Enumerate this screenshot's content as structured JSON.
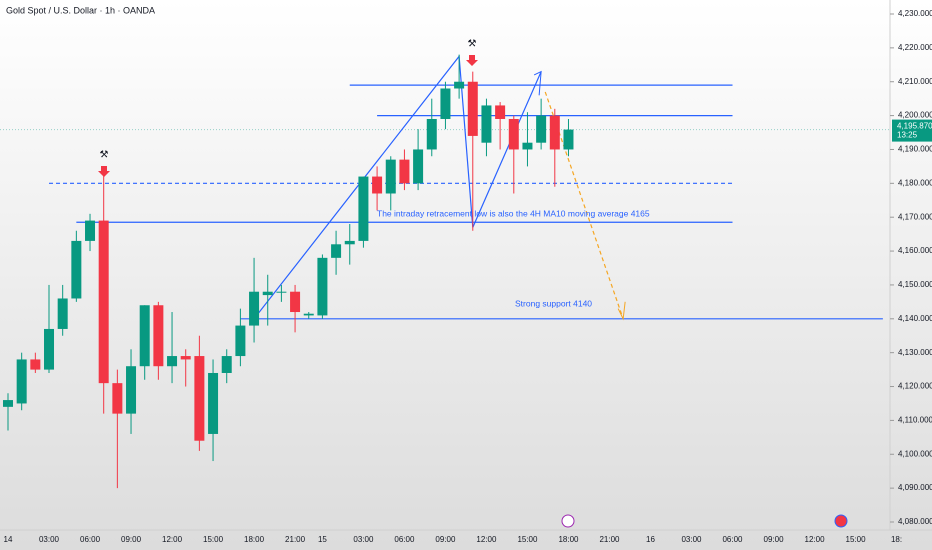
{
  "chart_data": {
    "type": "candlestick",
    "title": "Gold Spot / U.S. Dollar · 1h · OANDA",
    "categories": [
      "14",
      null,
      null,
      "03:00",
      null,
      null,
      "06:00",
      null,
      null,
      "09:00",
      null,
      null,
      "12:00",
      null,
      null,
      "15:00",
      null,
      null,
      "18:00",
      null,
      null,
      "21:00",
      null,
      "15",
      null,
      null,
      "03:00",
      null,
      null,
      "06:00",
      null,
      null,
      "09:00",
      null,
      null,
      "12:00",
      null,
      null,
      "15:00",
      null,
      null,
      "18:00",
      null,
      null,
      "21:00",
      null,
      null,
      "16",
      null,
      null,
      "03:00",
      null,
      null,
      "06:00",
      null,
      null,
      "09:00",
      null,
      null,
      "12:00",
      null,
      null,
      "15:00",
      null,
      null,
      "18:"
    ],
    "open": [
      4114,
      4115,
      4128,
      4125,
      4137,
      4146,
      4163,
      4169,
      4121,
      4112,
      4126,
      4144,
      4126,
      4129,
      4129,
      4106,
      4124,
      4129,
      4138,
      4147,
      4148,
      4148,
      4141,
      4141,
      4158,
      4162,
      4163,
      4182,
      4177,
      4187,
      4180,
      4190,
      4199,
      4208,
      4210,
      4192,
      4203,
      4199,
      4190,
      4192,
      4200,
      4190,
      null,
      null,
      null,
      null,
      null,
      null,
      null,
      null,
      null,
      null,
      null,
      null,
      null,
      null,
      null,
      null,
      null,
      null,
      null,
      null,
      null,
      null,
      null,
      null
    ],
    "high": [
      4118,
      4130,
      4130,
      4150,
      4150,
      4166,
      4171,
      4185,
      4125,
      4131,
      4144,
      4145,
      4142,
      4131,
      4135,
      4128,
      4131,
      4143,
      4158,
      4153,
      4150,
      4150,
      4142,
      4159,
      4166,
      4168,
      4182,
      4185,
      4188,
      4190,
      4196,
      4205,
      4210,
      4218,
      4213,
      4205,
      4204,
      4200,
      4201,
      4205,
      4202,
      4199,
      null,
      null,
      null,
      null,
      null,
      null,
      null,
      null,
      null,
      null,
      null,
      null,
      null,
      null,
      null,
      null,
      null,
      null,
      null,
      null,
      null,
      null,
      null,
      null
    ],
    "low": [
      4107,
      4113,
      4124,
      4124,
      4135,
      4145,
      4160,
      4112,
      4090,
      4106,
      4122,
      4122,
      4121,
      4120,
      4101,
      4098,
      4121,
      4126,
      4133,
      4138,
      4145,
      4136,
      4140,
      4140,
      4153,
      4156,
      4161,
      4172,
      4172,
      4178,
      4178,
      4188,
      4196,
      4205,
      4166,
      4188,
      4190,
      4177,
      4185,
      4190,
      4179,
      4188,
      null,
      null,
      null,
      null,
      null,
      null,
      null,
      null,
      null,
      null,
      null,
      null,
      null,
      null,
      null,
      null,
      null,
      null,
      null,
      null,
      null,
      null,
      null,
      null
    ],
    "close": [
      4116,
      4128,
      4125,
      4137,
      4146,
      4163,
      4169,
      4121,
      4112,
      4126,
      4144,
      4126,
      4129,
      4128,
      4104,
      4124,
      4129,
      4138,
      4148,
      4148,
      4148,
      4142,
      4141.5,
      4158,
      4162,
      4163,
      4182,
      4177,
      4187,
      4180,
      4190,
      4199,
      4208,
      4210,
      4194,
      4203,
      4199,
      4190,
      4192,
      4200,
      4190,
      4195.87,
      null,
      null,
      null,
      null,
      null,
      null,
      null,
      null,
      null,
      null,
      null,
      null,
      null,
      null,
      null,
      null,
      null,
      null,
      null,
      null,
      null,
      null,
      null,
      null
    ],
    "up_color": "#089981",
    "down_color": "#f23645",
    "ylim": [
      4080,
      4230
    ],
    "yticks": [
      {
        "value": 4080,
        "label": "4,080.000"
      },
      {
        "value": 4090,
        "label": "4,090.000"
      },
      {
        "value": 4100,
        "label": "4,100.000"
      },
      {
        "value": 4110,
        "label": "4,110.000"
      },
      {
        "value": 4120,
        "label": "4,120.000"
      },
      {
        "value": 4130,
        "label": "4,130.000"
      },
      {
        "value": 4140,
        "label": "4,140.000"
      },
      {
        "value": 4150,
        "label": "4,150.000"
      },
      {
        "value": 4160,
        "label": "4,160.000"
      },
      {
        "value": 4170,
        "label": "4,170.000"
      },
      {
        "value": 4180,
        "label": "4,180.000"
      },
      {
        "value": 4190,
        "label": "4,190.000"
      },
      {
        "value": 4200,
        "label": "4,200.000"
      },
      {
        "value": 4210,
        "label": "4,210.000"
      },
      {
        "value": 4220,
        "label": "4,220.000"
      },
      {
        "value": 4230,
        "label": "4,230.000"
      }
    ],
    "last_price": {
      "value": 4195.87,
      "label": "4,195.870"
    },
    "countdown": "13:25",
    "levels": [
      4209,
      4200,
      4180,
      4168.5,
      4140
    ],
    "annotations": [
      "The intraday retracement low is also the 4H MA10 moving average 4165",
      "Strong support 4140"
    ]
  }
}
